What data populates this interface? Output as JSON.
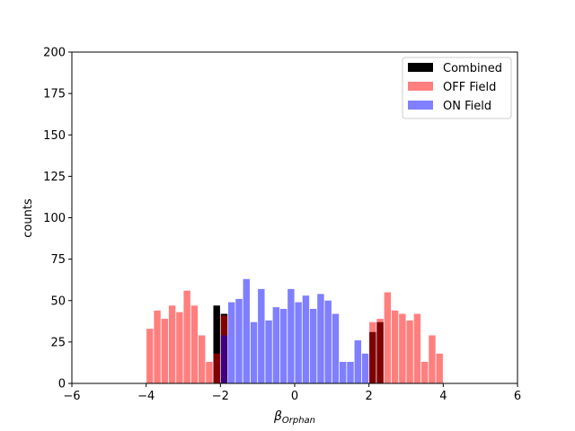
{
  "chart_data": {
    "type": "bar",
    "title": "",
    "xlabel": "β",
    "xlabel_subscript": "Orphan",
    "ylabel": "counts",
    "xlim": [
      -6,
      6
    ],
    "ylim": [
      0,
      200
    ],
    "xticks": [
      -6,
      -4,
      -2,
      0,
      2,
      4,
      6
    ],
    "yticks": [
      0,
      25,
      50,
      75,
      100,
      125,
      150,
      175,
      200
    ],
    "grid": false,
    "legend_position": "top-right",
    "bin_width": 0.2,
    "series": [
      {
        "name": "Combined",
        "color": "#000000",
        "opacity": 1,
        "x": [
          -2.2,
          -2.0,
          2.0,
          2.2
        ],
        "values": [
          47,
          42,
          31,
          37
        ]
      },
      {
        "name": "OFF Field",
        "color": "#ff0000",
        "opacity": 0.5,
        "x": [
          -4.0,
          -3.8,
          -3.6,
          -3.4,
          -3.2,
          -3.0,
          -2.8,
          -2.6,
          -2.4,
          -2.2,
          -2.0,
          2.0,
          2.2,
          2.4,
          2.6,
          2.8,
          3.0,
          3.2,
          3.4,
          3.6,
          3.8
        ],
        "values": [
          33,
          44,
          39,
          47,
          43,
          56,
          47,
          29,
          13,
          18,
          41,
          37,
          39,
          55,
          44,
          42,
          38,
          42,
          13,
          29,
          18
        ]
      },
      {
        "name": "ON Field",
        "color": "#0000ff",
        "opacity": 0.5,
        "x": [
          -2.0,
          -1.8,
          -1.6,
          -1.4,
          -1.2,
          -1.0,
          -0.8,
          -0.6,
          -0.4,
          -0.2,
          0.0,
          0.2,
          0.4,
          0.6,
          0.8,
          1.0,
          1.2,
          1.4,
          1.6,
          1.8
        ],
        "values": [
          29,
          49,
          51,
          63,
          37,
          57,
          38,
          46,
          45,
          57,
          49,
          53,
          45,
          54,
          50,
          42,
          13,
          13,
          26,
          18
        ]
      }
    ]
  }
}
